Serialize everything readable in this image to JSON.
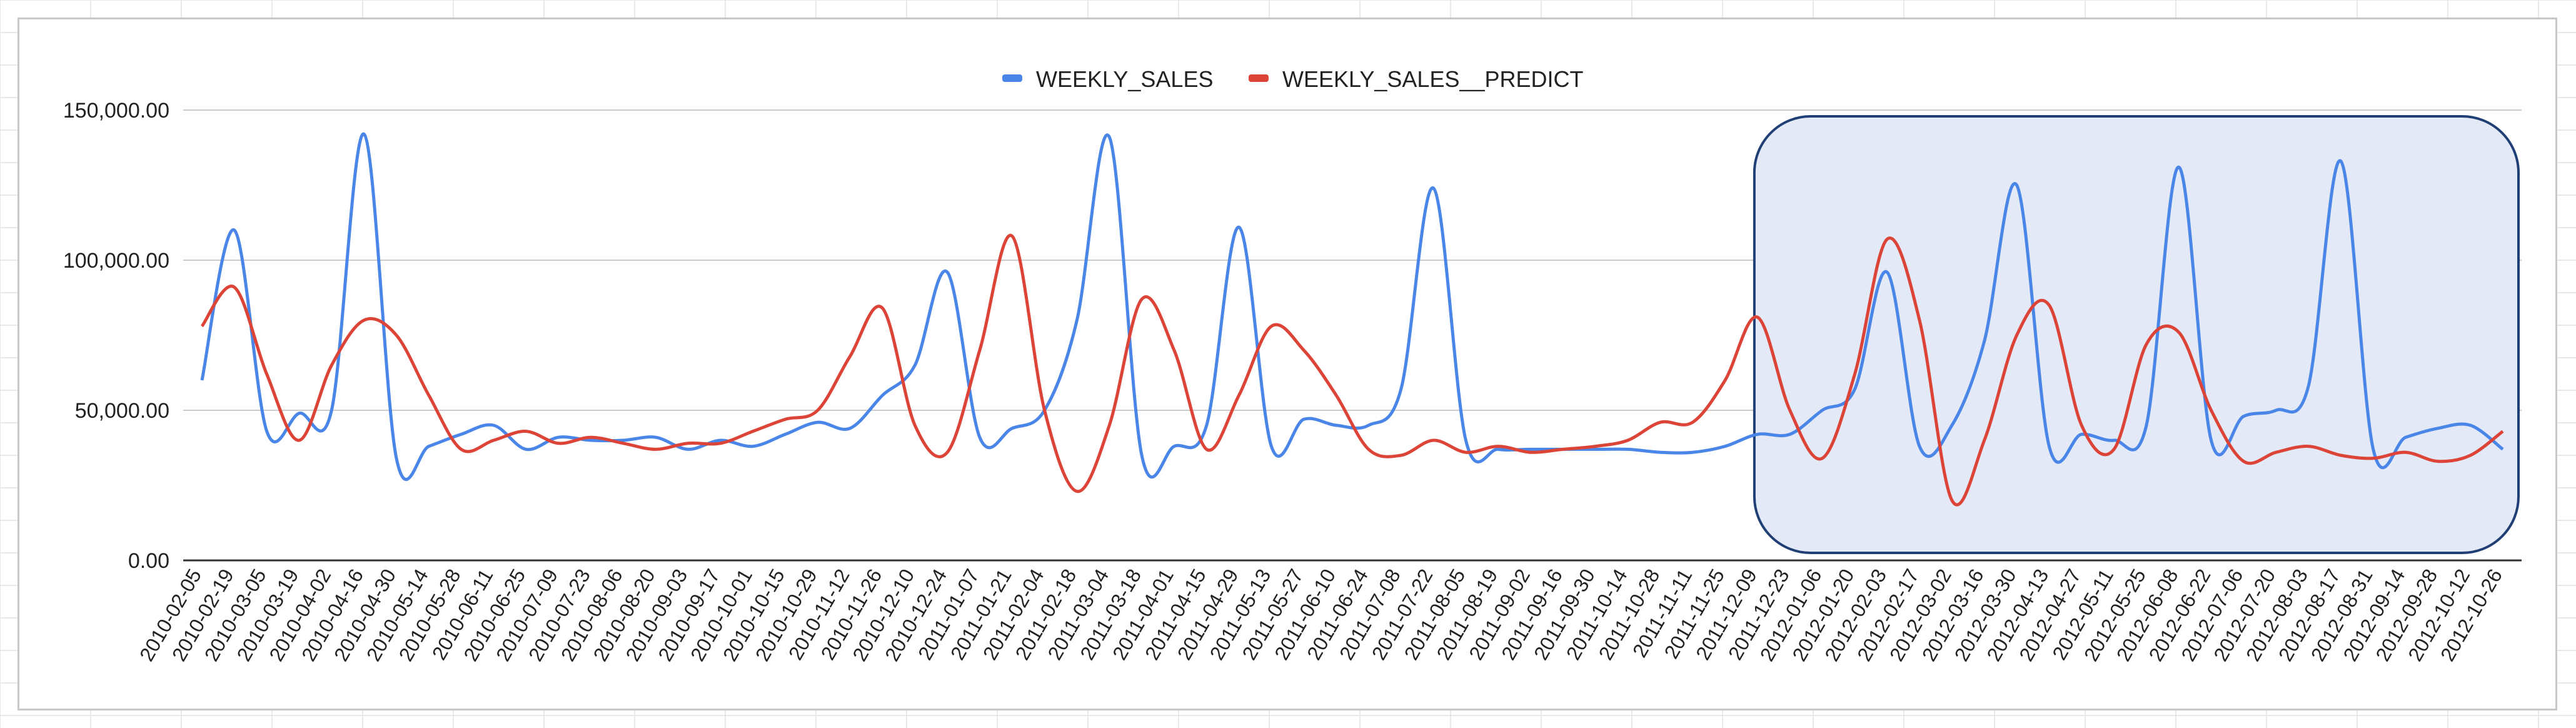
{
  "chart_data": {
    "type": "line",
    "title": "",
    "xlabel": "",
    "ylabel": "",
    "ylim": [
      0,
      150000
    ],
    "yticks": [
      "0.00",
      "50,000.00",
      "100,000.00",
      "150,000.00"
    ],
    "grid": true,
    "legend_position": "top",
    "x": [
      "2010-02-05",
      "2010-02-19",
      "2010-03-05",
      "2010-03-19",
      "2010-04-02",
      "2010-04-16",
      "2010-04-30",
      "2010-05-14",
      "2010-05-28",
      "2010-06-11",
      "2010-06-25",
      "2010-07-09",
      "2010-07-23",
      "2010-08-06",
      "2010-08-20",
      "2010-09-03",
      "2010-09-17",
      "2010-10-01",
      "2010-10-15",
      "2010-10-29",
      "2010-11-12",
      "2010-11-26",
      "2010-12-10",
      "2010-12-24",
      "2011-01-07",
      "2011-01-21",
      "2011-02-04",
      "2011-02-18",
      "2011-03-04",
      "2011-03-18",
      "2011-04-01",
      "2011-04-15",
      "2011-04-29",
      "2011-05-13",
      "2011-05-27",
      "2011-06-10",
      "2011-06-24",
      "2011-07-08",
      "2011-07-22",
      "2011-08-05",
      "2011-08-19",
      "2011-09-02",
      "2011-09-16",
      "2011-09-30",
      "2011-10-14",
      "2011-10-28",
      "2011-11-11",
      "2011-11-25",
      "2011-12-09",
      "2011-12-23",
      "2012-01-06",
      "2012-01-20",
      "2012-02-03",
      "2012-02-17",
      "2012-03-02",
      "2012-03-16",
      "2012-03-30",
      "2012-04-13",
      "2012-04-27",
      "2012-05-11",
      "2012-05-25",
      "2012-06-08",
      "2012-06-22",
      "2012-07-06",
      "2012-07-20",
      "2012-08-03",
      "2012-08-17",
      "2012-08-31",
      "2012-09-14",
      "2012-09-28",
      "2012-10-12",
      "2012-10-26"
    ],
    "series": [
      {
        "name": "WEEKLY_SALES",
        "color": "#4a86e8",
        "values": [
          60000,
          110000,
          43000,
          49000,
          50000,
          142000,
          34000,
          38000,
          42000,
          45000,
          37000,
          41000,
          40000,
          40000,
          41000,
          37000,
          40000,
          38000,
          42000,
          46000,
          44000,
          55000,
          65000,
          96000,
          41000,
          44000,
          50000,
          80000,
          141000,
          35000,
          38000,
          45000,
          111000,
          38000,
          47000,
          45000,
          45000,
          57000,
          124000,
          40000,
          37000,
          37000,
          37000,
          37000,
          37000,
          36000,
          36000,
          38000,
          42000,
          42000,
          50000,
          57000,
          96000,
          38000,
          45000,
          73000,
          125000,
          38000,
          42000,
          40000,
          45000,
          131000,
          40000,
          48000,
          50000,
          58000,
          133000,
          37000,
          41000,
          44000,
          45000,
          37000
        ]
      },
      {
        "name": "WEEKLY_SALES__PREDICT",
        "color": "#db4437",
        "values": [
          78000,
          91000,
          62000,
          40000,
          65000,
          80000,
          75000,
          55000,
          37000,
          40000,
          43000,
          39000,
          41000,
          39000,
          37000,
          39000,
          39000,
          43000,
          47000,
          50000,
          68000,
          84000,
          45000,
          36000,
          70000,
          108000,
          50000,
          23000,
          45000,
          87000,
          70000,
          37000,
          55000,
          78000,
          70000,
          55000,
          37000,
          35000,
          40000,
          36000,
          38000,
          36000,
          37000,
          38000,
          40000,
          46000,
          46000,
          60000,
          81000,
          50000,
          34000,
          62000,
          107000,
          80000,
          20000,
          40000,
          75000,
          85000,
          45000,
          37000,
          72000,
          76000,
          50000,
          33000,
          36000,
          38000,
          35000,
          34000,
          36000,
          33000,
          35000,
          43000
        ]
      }
    ],
    "highlight_region": {
      "from": "2011-12-09",
      "to": "2012-10-26"
    }
  }
}
